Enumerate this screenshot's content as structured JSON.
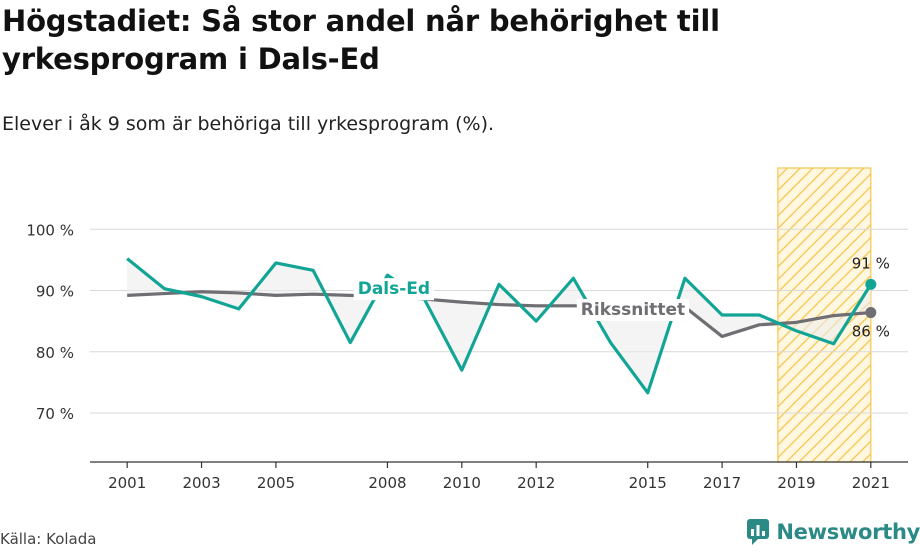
{
  "title": "Högstadiet: Så stor andel når behörighet till yrkesprogram i Dals-Ed",
  "subtitle": "Elever i åk 9 som är behöriga till yrkesprogram (%).",
  "source": "Källa: Kolada",
  "brand": "Newsworthy",
  "colors": {
    "local": "#12a596",
    "national": "#6e6e73",
    "highlight": "#f5c64f",
    "fill": "#ececec",
    "grid": "#d8d8d8"
  },
  "chart_data": {
    "type": "line",
    "x": [
      2001,
      2002,
      2003,
      2004,
      2005,
      2006,
      2007,
      2008,
      2009,
      2010,
      2011,
      2012,
      2013,
      2014,
      2015,
      2016,
      2017,
      2018,
      2019,
      2020,
      2021
    ],
    "x_ticks": [
      2001,
      2003,
      2005,
      2008,
      2010,
      2012,
      2015,
      2017,
      2019,
      2021
    ],
    "y_ticks": [
      70,
      80,
      90,
      100
    ],
    "y_tick_labels": [
      "70 %",
      "80 %",
      "90 %",
      "100 %"
    ],
    "ylim": [
      62,
      110
    ],
    "xlim": [
      2000,
      2022
    ],
    "highlight_range": [
      2018.5,
      2021
    ],
    "series": [
      {
        "name": "Dals-Ed",
        "values": [
          95.2,
          90.3,
          89.0,
          87.0,
          94.5,
          93.3,
          81.5,
          92.5,
          88.5,
          77.0,
          91.0,
          85.0,
          92.0,
          81.5,
          73.3,
          92.0,
          86.0,
          86.0,
          83.4,
          81.3,
          91.0
        ],
        "end_label": "91 %"
      },
      {
        "name": "Rikssnittet",
        "values": [
          89.2,
          89.5,
          89.8,
          89.6,
          89.2,
          89.4,
          89.2,
          89.0,
          88.6,
          88.1,
          87.7,
          87.5,
          87.5,
          87.4,
          87.2,
          87.3,
          82.5,
          84.4,
          84.8,
          85.9,
          86.4
        ],
        "end_label": "86 %"
      }
    ]
  }
}
